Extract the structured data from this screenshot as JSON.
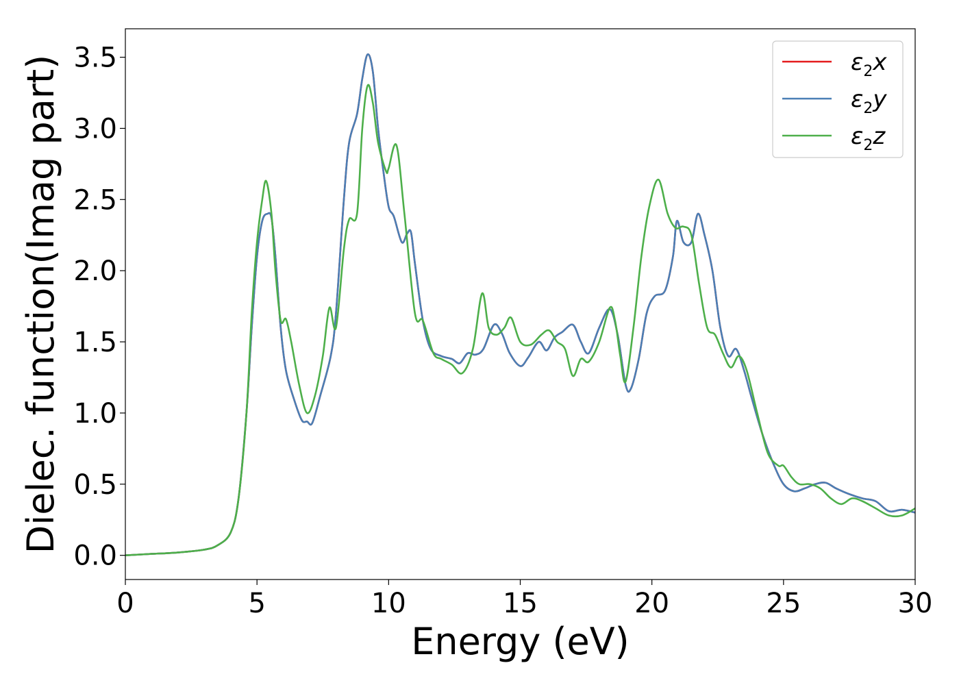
{
  "chart_data": {
    "type": "line",
    "xlabel": "Energy (eV)",
    "ylabel": "Dielec. function(Imag part)",
    "xlim": [
      0,
      30
    ],
    "ylim": [
      -0.17,
      3.7
    ],
    "xticks": [
      0,
      5,
      10,
      15,
      20,
      25,
      30
    ],
    "yticks": [
      "0.0",
      "0.5",
      "1.0",
      "1.5",
      "2.0",
      "2.5",
      "3.0",
      "3.5"
    ],
    "grid": false,
    "legend_position": "top-right",
    "series": [
      {
        "name": "ε₂x",
        "legend": {
          "symbol": "ε",
          "sub": "2",
          "var": "x"
        },
        "color": "#e41a1c",
        "x": [
          0,
          1,
          2,
          3,
          3.5,
          4,
          4.3,
          4.6,
          4.8,
          5.0,
          5.2,
          5.4,
          5.55,
          5.7,
          5.9,
          6.1,
          6.4,
          6.7,
          6.9,
          7.1,
          7.4,
          7.8,
          8.0,
          8.3,
          8.5,
          8.8,
          9.0,
          9.2,
          9.4,
          9.6,
          9.8,
          10.0,
          10.2,
          10.5,
          10.7,
          10.85,
          11.0,
          11.3,
          11.6,
          12.0,
          12.4,
          12.7,
          13.0,
          13.3,
          13.6,
          14.0,
          14.3,
          14.6,
          15.0,
          15.3,
          15.7,
          16.0,
          16.3,
          16.6,
          17.0,
          17.3,
          17.6,
          18.0,
          18.4,
          18.7,
          19.0,
          19.2,
          19.5,
          19.8,
          20.1,
          20.5,
          20.8,
          20.95,
          21.2,
          21.5,
          21.75,
          22.0,
          22.3,
          22.6,
          22.9,
          23.2,
          23.5,
          23.8,
          24.2,
          24.6,
          25.0,
          25.4,
          25.8,
          26.2,
          26.6,
          27.0,
          27.5,
          28.0,
          28.5,
          29.0,
          29.5,
          30.0
        ],
        "y": [
          0.0,
          0.01,
          0.02,
          0.04,
          0.07,
          0.16,
          0.4,
          1.0,
          1.6,
          2.1,
          2.35,
          2.4,
          2.37,
          2.1,
          1.6,
          1.3,
          1.1,
          0.95,
          0.94,
          0.93,
          1.12,
          1.4,
          1.7,
          2.5,
          2.9,
          3.1,
          3.35,
          3.52,
          3.4,
          3.0,
          2.7,
          2.45,
          2.38,
          2.2,
          2.26,
          2.27,
          2.05,
          1.65,
          1.45,
          1.4,
          1.38,
          1.35,
          1.42,
          1.41,
          1.45,
          1.62,
          1.56,
          1.42,
          1.33,
          1.39,
          1.5,
          1.44,
          1.53,
          1.57,
          1.62,
          1.5,
          1.42,
          1.6,
          1.73,
          1.55,
          1.2,
          1.17,
          1.38,
          1.7,
          1.82,
          1.86,
          2.1,
          2.35,
          2.2,
          2.2,
          2.4,
          2.25,
          2.0,
          1.6,
          1.4,
          1.45,
          1.3,
          1.1,
          0.85,
          0.65,
          0.5,
          0.45,
          0.47,
          0.5,
          0.51,
          0.47,
          0.43,
          0.4,
          0.38,
          0.31,
          0.32,
          0.3
        ]
      },
      {
        "name": "ε₂y",
        "legend": {
          "symbol": "ε",
          "sub": "2",
          "var": "y"
        },
        "color": "#4a7fb5",
        "x": [
          0,
          1,
          2,
          3,
          3.5,
          4,
          4.3,
          4.6,
          4.8,
          5.0,
          5.2,
          5.4,
          5.55,
          5.7,
          5.9,
          6.1,
          6.4,
          6.7,
          6.9,
          7.1,
          7.4,
          7.8,
          8.0,
          8.3,
          8.5,
          8.8,
          9.0,
          9.2,
          9.4,
          9.6,
          9.8,
          10.0,
          10.2,
          10.5,
          10.7,
          10.85,
          11.0,
          11.3,
          11.6,
          12.0,
          12.4,
          12.7,
          13.0,
          13.3,
          13.6,
          14.0,
          14.3,
          14.6,
          15.0,
          15.3,
          15.7,
          16.0,
          16.3,
          16.6,
          17.0,
          17.3,
          17.6,
          18.0,
          18.4,
          18.7,
          19.0,
          19.2,
          19.5,
          19.8,
          20.1,
          20.5,
          20.8,
          20.95,
          21.2,
          21.5,
          21.75,
          22.0,
          22.3,
          22.6,
          22.9,
          23.2,
          23.5,
          23.8,
          24.2,
          24.6,
          25.0,
          25.4,
          25.8,
          26.2,
          26.6,
          27.0,
          27.5,
          28.0,
          28.5,
          29.0,
          29.5,
          30.0
        ],
        "y": [
          0.0,
          0.01,
          0.02,
          0.04,
          0.07,
          0.16,
          0.4,
          1.0,
          1.6,
          2.1,
          2.35,
          2.4,
          2.37,
          2.1,
          1.6,
          1.3,
          1.1,
          0.95,
          0.94,
          0.93,
          1.12,
          1.4,
          1.7,
          2.5,
          2.9,
          3.1,
          3.35,
          3.52,
          3.4,
          3.0,
          2.7,
          2.45,
          2.38,
          2.2,
          2.26,
          2.27,
          2.05,
          1.65,
          1.45,
          1.4,
          1.38,
          1.35,
          1.42,
          1.41,
          1.45,
          1.62,
          1.56,
          1.42,
          1.33,
          1.39,
          1.5,
          1.44,
          1.53,
          1.57,
          1.62,
          1.5,
          1.42,
          1.6,
          1.73,
          1.55,
          1.2,
          1.17,
          1.38,
          1.7,
          1.82,
          1.86,
          2.1,
          2.35,
          2.2,
          2.2,
          2.4,
          2.25,
          2.0,
          1.6,
          1.4,
          1.45,
          1.3,
          1.1,
          0.85,
          0.65,
          0.5,
          0.45,
          0.47,
          0.5,
          0.51,
          0.47,
          0.43,
          0.4,
          0.38,
          0.31,
          0.32,
          0.3
        ]
      },
      {
        "name": "ε₂z",
        "legend": {
          "symbol": "ε",
          "sub": "2",
          "var": "z"
        },
        "color": "#4daf4a",
        "x": [
          0,
          1,
          2,
          3,
          3.5,
          4,
          4.3,
          4.6,
          4.8,
          5.0,
          5.2,
          5.35,
          5.55,
          5.7,
          5.9,
          6.1,
          6.3,
          6.6,
          6.9,
          7.2,
          7.5,
          7.75,
          8.0,
          8.3,
          8.5,
          8.8,
          9.0,
          9.2,
          9.4,
          9.6,
          9.9,
          10.0,
          10.3,
          10.6,
          11.0,
          11.3,
          11.7,
          12.0,
          12.4,
          12.8,
          13.2,
          13.55,
          13.8,
          14.1,
          14.4,
          14.65,
          15.0,
          15.4,
          15.8,
          16.1,
          16.4,
          16.7,
          17.0,
          17.3,
          17.6,
          18.0,
          18.4,
          18.6,
          18.8,
          19.0,
          19.3,
          19.6,
          19.9,
          20.25,
          20.6,
          20.9,
          21.2,
          21.5,
          21.8,
          22.1,
          22.4,
          22.7,
          23.0,
          23.3,
          23.6,
          24.0,
          24.4,
          24.8,
          25.0,
          25.3,
          25.6,
          26.0,
          26.4,
          26.8,
          27.2,
          27.6,
          28.0,
          28.5,
          29.0,
          29.5,
          30.0
        ],
        "y": [
          0.0,
          0.01,
          0.02,
          0.04,
          0.07,
          0.16,
          0.4,
          1.0,
          1.7,
          2.2,
          2.5,
          2.63,
          2.4,
          2.0,
          1.65,
          1.66,
          1.5,
          1.2,
          1.0,
          1.12,
          1.4,
          1.74,
          1.6,
          2.15,
          2.36,
          2.4,
          3.0,
          3.3,
          3.18,
          2.9,
          2.7,
          2.72,
          2.88,
          2.4,
          1.7,
          1.65,
          1.42,
          1.38,
          1.34,
          1.28,
          1.45,
          1.84,
          1.6,
          1.55,
          1.6,
          1.67,
          1.5,
          1.48,
          1.55,
          1.58,
          1.5,
          1.45,
          1.26,
          1.38,
          1.36,
          1.5,
          1.74,
          1.65,
          1.4,
          1.22,
          1.6,
          2.1,
          2.45,
          2.64,
          2.4,
          2.3,
          2.31,
          2.25,
          1.9,
          1.6,
          1.55,
          1.42,
          1.32,
          1.4,
          1.3,
          1.0,
          0.72,
          0.63,
          0.63,
          0.55,
          0.5,
          0.5,
          0.47,
          0.4,
          0.36,
          0.4,
          0.38,
          0.33,
          0.28,
          0.28,
          0.33
        ]
      }
    ]
  }
}
